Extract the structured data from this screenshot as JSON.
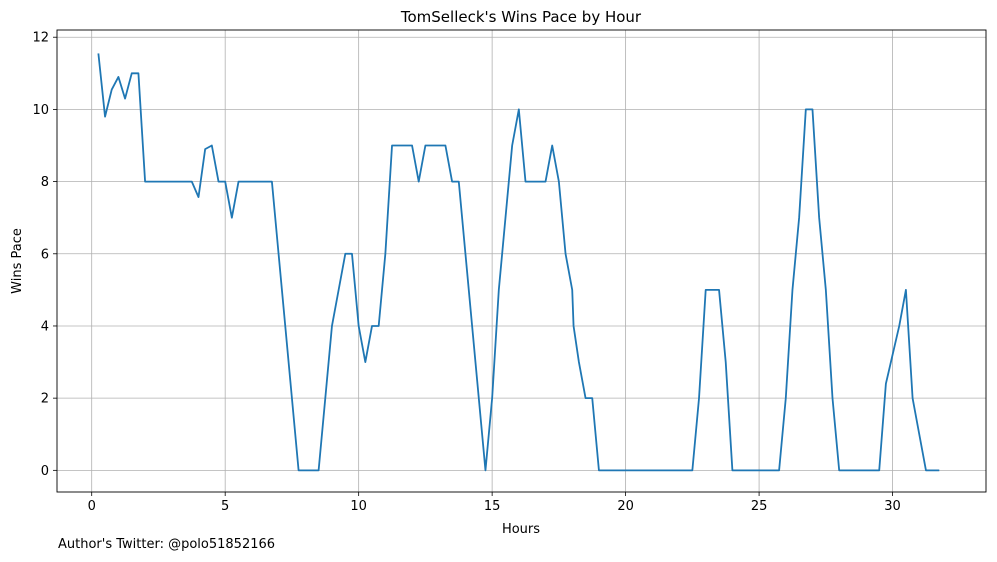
{
  "footnote": "Author's Twitter: @polo51852166",
  "chart_data": {
    "type": "line",
    "title": "TomSelleck's Wins Pace by Hour",
    "xlabel": "Hours",
    "ylabel": "Wins Pace",
    "xlim": [
      -1.3,
      33.5
    ],
    "ylim": [
      -0.6,
      12.2
    ],
    "xticks": [
      0,
      5,
      10,
      15,
      20,
      25,
      30
    ],
    "yticks": [
      0,
      2,
      4,
      6,
      8,
      10,
      12
    ],
    "grid": true,
    "line_color": "#1f77b4",
    "series": [
      {
        "x": [
          0.25,
          0.5,
          0.75,
          1.0,
          1.25,
          1.5,
          1.75,
          2.0,
          2.25,
          2.5,
          2.75,
          3.0,
          3.25,
          3.5,
          3.75,
          4.0,
          4.25,
          4.5,
          4.75,
          5.0,
          5.25,
          5.5,
          5.75,
          6.0,
          6.25,
          6.5,
          6.75,
          7.0,
          7.25,
          7.5,
          7.75,
          8.0,
          8.25,
          8.5,
          8.75,
          9.0,
          9.25,
          9.5,
          9.75,
          10.0,
          10.25,
          10.5,
          10.75,
          11.0,
          11.25,
          11.5,
          11.75,
          12.0,
          12.25,
          12.5,
          12.75,
          13.0,
          13.25,
          13.5,
          13.75,
          14.0,
          14.25,
          14.5,
          14.75,
          15.0,
          15.25,
          15.5,
          15.75,
          16.0,
          16.25,
          16.5,
          16.75,
          17.0,
          17.25,
          17.5,
          17.75,
          18.0,
          18.05,
          18.25,
          18.5,
          18.75,
          19.0,
          19.25,
          19.5,
          19.75,
          20.0,
          20.25,
          20.5,
          20.75,
          21.0,
          21.25,
          21.5,
          21.75,
          22.0,
          22.25,
          22.5,
          22.75,
          23.0,
          23.25,
          23.5,
          23.75,
          24.0,
          24.25,
          24.5,
          24.75,
          25.0,
          25.25,
          25.5,
          25.75,
          26.0,
          26.25,
          26.5,
          26.75,
          27.0,
          27.25,
          27.5,
          27.75,
          28.0,
          28.25,
          28.5,
          28.75,
          29.0,
          29.25,
          29.5,
          29.75,
          30.0,
          30.25,
          30.5,
          30.75,
          31.0,
          31.25,
          31.5,
          31.75
        ],
        "y": [
          11.55,
          9.8,
          10.55,
          10.9,
          10.3,
          11.0,
          11.0,
          8.0,
          8.0,
          8.0,
          8.0,
          8.0,
          8.0,
          8.0,
          8.0,
          7.57,
          8.9,
          9.0,
          8.0,
          8.0,
          7.0,
          8.0,
          8.0,
          8.0,
          8.0,
          8.0,
          8.0,
          6.0,
          4.0,
          2.0,
          0.0,
          0.0,
          0.0,
          0.0,
          2.0,
          4.0,
          5.0,
          6.0,
          6.0,
          4.0,
          3.0,
          4.0,
          4.0,
          6.0,
          9.0,
          9.0,
          9.0,
          9.0,
          8.0,
          9.0,
          9.0,
          9.0,
          9.0,
          8.0,
          8.0,
          6.0,
          4.0,
          2.0,
          0.0,
          2.0,
          5.0,
          7.0,
          9.0,
          10.0,
          8.0,
          8.0,
          8.0,
          8.0,
          9.0,
          8.0,
          6.0,
          5.0,
          4.0,
          3.0,
          2.0,
          2.0,
          0.0,
          0.0,
          0.0,
          0.0,
          0.0,
          0.0,
          0.0,
          0.0,
          0.0,
          0.0,
          0.0,
          0.0,
          0.0,
          0.0,
          0.0,
          2.0,
          5.0,
          5.0,
          5.0,
          3.0,
          0.0,
          0.0,
          0.0,
          0.0,
          0.0,
          0.0,
          0.0,
          0.0,
          2.0,
          5.0,
          7.0,
          10.0,
          10.0,
          7.0,
          5.0,
          2.0,
          0.0,
          0.0,
          0.0,
          0.0,
          0.0,
          0.0,
          0.0,
          2.4,
          3.2,
          4.0,
          5.0,
          2.0,
          1.0,
          0.0,
          0.0,
          0.0
        ]
      }
    ]
  }
}
